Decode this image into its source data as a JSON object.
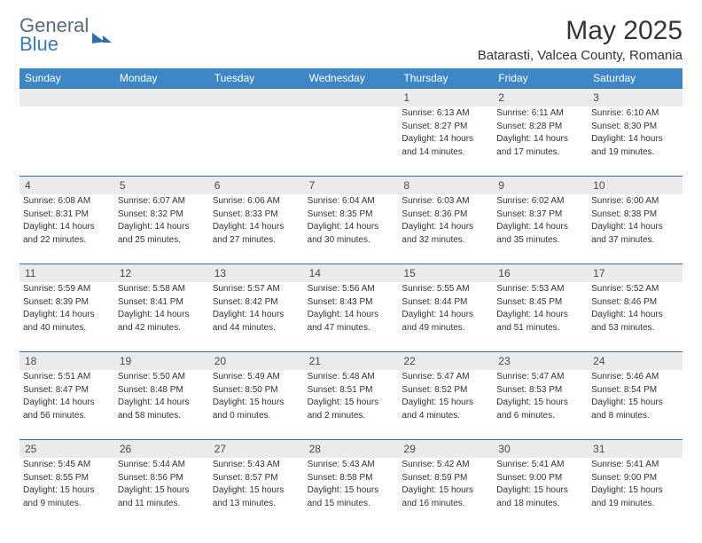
{
  "brand": {
    "line1": "General",
    "line2": "Blue"
  },
  "title": "May 2025",
  "location": "Batarasti, Valcea County, Romania",
  "colors": {
    "header_bg": "#3d87c7",
    "header_text": "#ffffff",
    "daynum_bg": "#ebebeb",
    "rule": "#2f6fa8",
    "body_text": "#333333",
    "title_text": "#353535",
    "logo_gray": "#5a6b78",
    "logo_blue": "#3d7bb8",
    "page_bg": "#ffffff"
  },
  "typography": {
    "title_fontsize": 30,
    "location_fontsize": 15,
    "dow_fontsize": 12,
    "daynum_fontsize": 12,
    "cell_fontsize": 10
  },
  "dow": [
    "Sunday",
    "Monday",
    "Tuesday",
    "Wednesday",
    "Thursday",
    "Friday",
    "Saturday"
  ],
  "weeks": [
    [
      {
        "n": "",
        "sr": "",
        "ss": "",
        "dl1": "",
        "dl2": ""
      },
      {
        "n": "",
        "sr": "",
        "ss": "",
        "dl1": "",
        "dl2": ""
      },
      {
        "n": "",
        "sr": "",
        "ss": "",
        "dl1": "",
        "dl2": ""
      },
      {
        "n": "",
        "sr": "",
        "ss": "",
        "dl1": "",
        "dl2": ""
      },
      {
        "n": "1",
        "sr": "Sunrise: 6:13 AM",
        "ss": "Sunset: 8:27 PM",
        "dl1": "Daylight: 14 hours",
        "dl2": "and 14 minutes."
      },
      {
        "n": "2",
        "sr": "Sunrise: 6:11 AM",
        "ss": "Sunset: 8:28 PM",
        "dl1": "Daylight: 14 hours",
        "dl2": "and 17 minutes."
      },
      {
        "n": "3",
        "sr": "Sunrise: 6:10 AM",
        "ss": "Sunset: 8:30 PM",
        "dl1": "Daylight: 14 hours",
        "dl2": "and 19 minutes."
      }
    ],
    [
      {
        "n": "4",
        "sr": "Sunrise: 6:08 AM",
        "ss": "Sunset: 8:31 PM",
        "dl1": "Daylight: 14 hours",
        "dl2": "and 22 minutes."
      },
      {
        "n": "5",
        "sr": "Sunrise: 6:07 AM",
        "ss": "Sunset: 8:32 PM",
        "dl1": "Daylight: 14 hours",
        "dl2": "and 25 minutes."
      },
      {
        "n": "6",
        "sr": "Sunrise: 6:06 AM",
        "ss": "Sunset: 8:33 PM",
        "dl1": "Daylight: 14 hours",
        "dl2": "and 27 minutes."
      },
      {
        "n": "7",
        "sr": "Sunrise: 6:04 AM",
        "ss": "Sunset: 8:35 PM",
        "dl1": "Daylight: 14 hours",
        "dl2": "and 30 minutes."
      },
      {
        "n": "8",
        "sr": "Sunrise: 6:03 AM",
        "ss": "Sunset: 8:36 PM",
        "dl1": "Daylight: 14 hours",
        "dl2": "and 32 minutes."
      },
      {
        "n": "9",
        "sr": "Sunrise: 6:02 AM",
        "ss": "Sunset: 8:37 PM",
        "dl1": "Daylight: 14 hours",
        "dl2": "and 35 minutes."
      },
      {
        "n": "10",
        "sr": "Sunrise: 6:00 AM",
        "ss": "Sunset: 8:38 PM",
        "dl1": "Daylight: 14 hours",
        "dl2": "and 37 minutes."
      }
    ],
    [
      {
        "n": "11",
        "sr": "Sunrise: 5:59 AM",
        "ss": "Sunset: 8:39 PM",
        "dl1": "Daylight: 14 hours",
        "dl2": "and 40 minutes."
      },
      {
        "n": "12",
        "sr": "Sunrise: 5:58 AM",
        "ss": "Sunset: 8:41 PM",
        "dl1": "Daylight: 14 hours",
        "dl2": "and 42 minutes."
      },
      {
        "n": "13",
        "sr": "Sunrise: 5:57 AM",
        "ss": "Sunset: 8:42 PM",
        "dl1": "Daylight: 14 hours",
        "dl2": "and 44 minutes."
      },
      {
        "n": "14",
        "sr": "Sunrise: 5:56 AM",
        "ss": "Sunset: 8:43 PM",
        "dl1": "Daylight: 14 hours",
        "dl2": "and 47 minutes."
      },
      {
        "n": "15",
        "sr": "Sunrise: 5:55 AM",
        "ss": "Sunset: 8:44 PM",
        "dl1": "Daylight: 14 hours",
        "dl2": "and 49 minutes."
      },
      {
        "n": "16",
        "sr": "Sunrise: 5:53 AM",
        "ss": "Sunset: 8:45 PM",
        "dl1": "Daylight: 14 hours",
        "dl2": "and 51 minutes."
      },
      {
        "n": "17",
        "sr": "Sunrise: 5:52 AM",
        "ss": "Sunset: 8:46 PM",
        "dl1": "Daylight: 14 hours",
        "dl2": "and 53 minutes."
      }
    ],
    [
      {
        "n": "18",
        "sr": "Sunrise: 5:51 AM",
        "ss": "Sunset: 8:47 PM",
        "dl1": "Daylight: 14 hours",
        "dl2": "and 56 minutes."
      },
      {
        "n": "19",
        "sr": "Sunrise: 5:50 AM",
        "ss": "Sunset: 8:48 PM",
        "dl1": "Daylight: 14 hours",
        "dl2": "and 58 minutes."
      },
      {
        "n": "20",
        "sr": "Sunrise: 5:49 AM",
        "ss": "Sunset: 8:50 PM",
        "dl1": "Daylight: 15 hours",
        "dl2": "and 0 minutes."
      },
      {
        "n": "21",
        "sr": "Sunrise: 5:48 AM",
        "ss": "Sunset: 8:51 PM",
        "dl1": "Daylight: 15 hours",
        "dl2": "and 2 minutes."
      },
      {
        "n": "22",
        "sr": "Sunrise: 5:47 AM",
        "ss": "Sunset: 8:52 PM",
        "dl1": "Daylight: 15 hours",
        "dl2": "and 4 minutes."
      },
      {
        "n": "23",
        "sr": "Sunrise: 5:47 AM",
        "ss": "Sunset: 8:53 PM",
        "dl1": "Daylight: 15 hours",
        "dl2": "and 6 minutes."
      },
      {
        "n": "24",
        "sr": "Sunrise: 5:46 AM",
        "ss": "Sunset: 8:54 PM",
        "dl1": "Daylight: 15 hours",
        "dl2": "and 8 minutes."
      }
    ],
    [
      {
        "n": "25",
        "sr": "Sunrise: 5:45 AM",
        "ss": "Sunset: 8:55 PM",
        "dl1": "Daylight: 15 hours",
        "dl2": "and 9 minutes."
      },
      {
        "n": "26",
        "sr": "Sunrise: 5:44 AM",
        "ss": "Sunset: 8:56 PM",
        "dl1": "Daylight: 15 hours",
        "dl2": "and 11 minutes."
      },
      {
        "n": "27",
        "sr": "Sunrise: 5:43 AM",
        "ss": "Sunset: 8:57 PM",
        "dl1": "Daylight: 15 hours",
        "dl2": "and 13 minutes."
      },
      {
        "n": "28",
        "sr": "Sunrise: 5:43 AM",
        "ss": "Sunset: 8:58 PM",
        "dl1": "Daylight: 15 hours",
        "dl2": "and 15 minutes."
      },
      {
        "n": "29",
        "sr": "Sunrise: 5:42 AM",
        "ss": "Sunset: 8:59 PM",
        "dl1": "Daylight: 15 hours",
        "dl2": "and 16 minutes."
      },
      {
        "n": "30",
        "sr": "Sunrise: 5:41 AM",
        "ss": "Sunset: 9:00 PM",
        "dl1": "Daylight: 15 hours",
        "dl2": "and 18 minutes."
      },
      {
        "n": "31",
        "sr": "Sunrise: 5:41 AM",
        "ss": "Sunset: 9:00 PM",
        "dl1": "Daylight: 15 hours",
        "dl2": "and 19 minutes."
      }
    ]
  ]
}
